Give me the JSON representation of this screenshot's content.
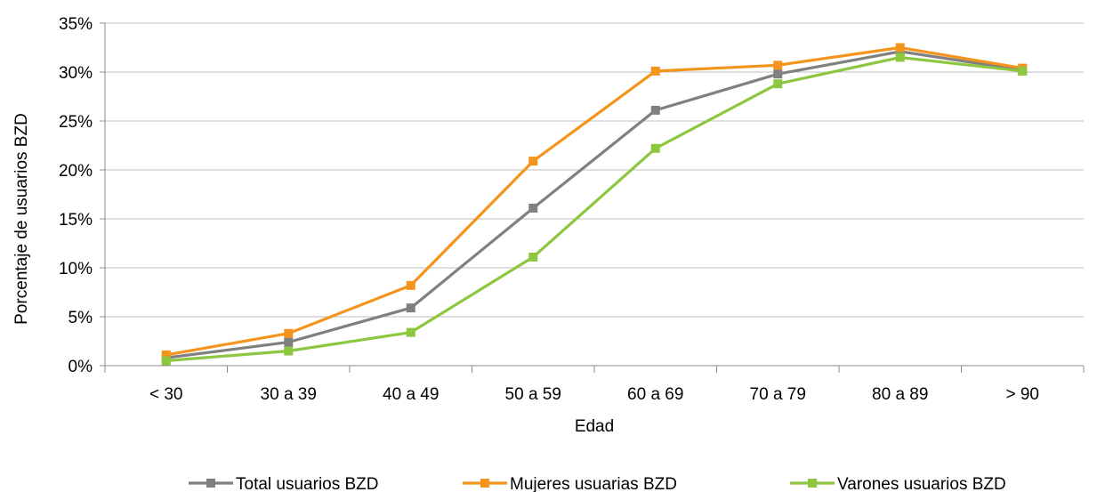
{
  "chart_data": {
    "type": "line",
    "xlabel": "Edad",
    "ylabel": "Porcentaje de usuarios BZD",
    "categories": [
      "< 30",
      "30 a 39",
      "40 a 49",
      "50 a 59",
      "60 a 69",
      "70 a 79",
      "80 a 89",
      "> 90"
    ],
    "ylim": [
      0,
      35
    ],
    "yticks": [
      0,
      5,
      10,
      15,
      20,
      25,
      30,
      35
    ],
    "ytick_labels": [
      "0%",
      "5%",
      "10%",
      "15%",
      "20%",
      "25%",
      "30%",
      "35%"
    ],
    "grid": true,
    "legend_position": "bottom",
    "series": [
      {
        "name": "Total usuarios BZD",
        "color": "#808080",
        "marker": "square",
        "values": [
          0.8,
          2.4,
          5.9,
          16.1,
          26.1,
          29.8,
          32.1,
          30.2
        ]
      },
      {
        "name": "Mujeres usuarias BZD",
        "color": "#f4941c",
        "marker": "square",
        "values": [
          1.1,
          3.3,
          8.2,
          20.9,
          30.1,
          30.7,
          32.5,
          30.4
        ]
      },
      {
        "name": "Varones usuarios BZD",
        "color": "#8dc63f",
        "marker": "square",
        "values": [
          0.5,
          1.5,
          3.4,
          11.1,
          22.2,
          28.8,
          31.5,
          30.1
        ]
      }
    ]
  }
}
